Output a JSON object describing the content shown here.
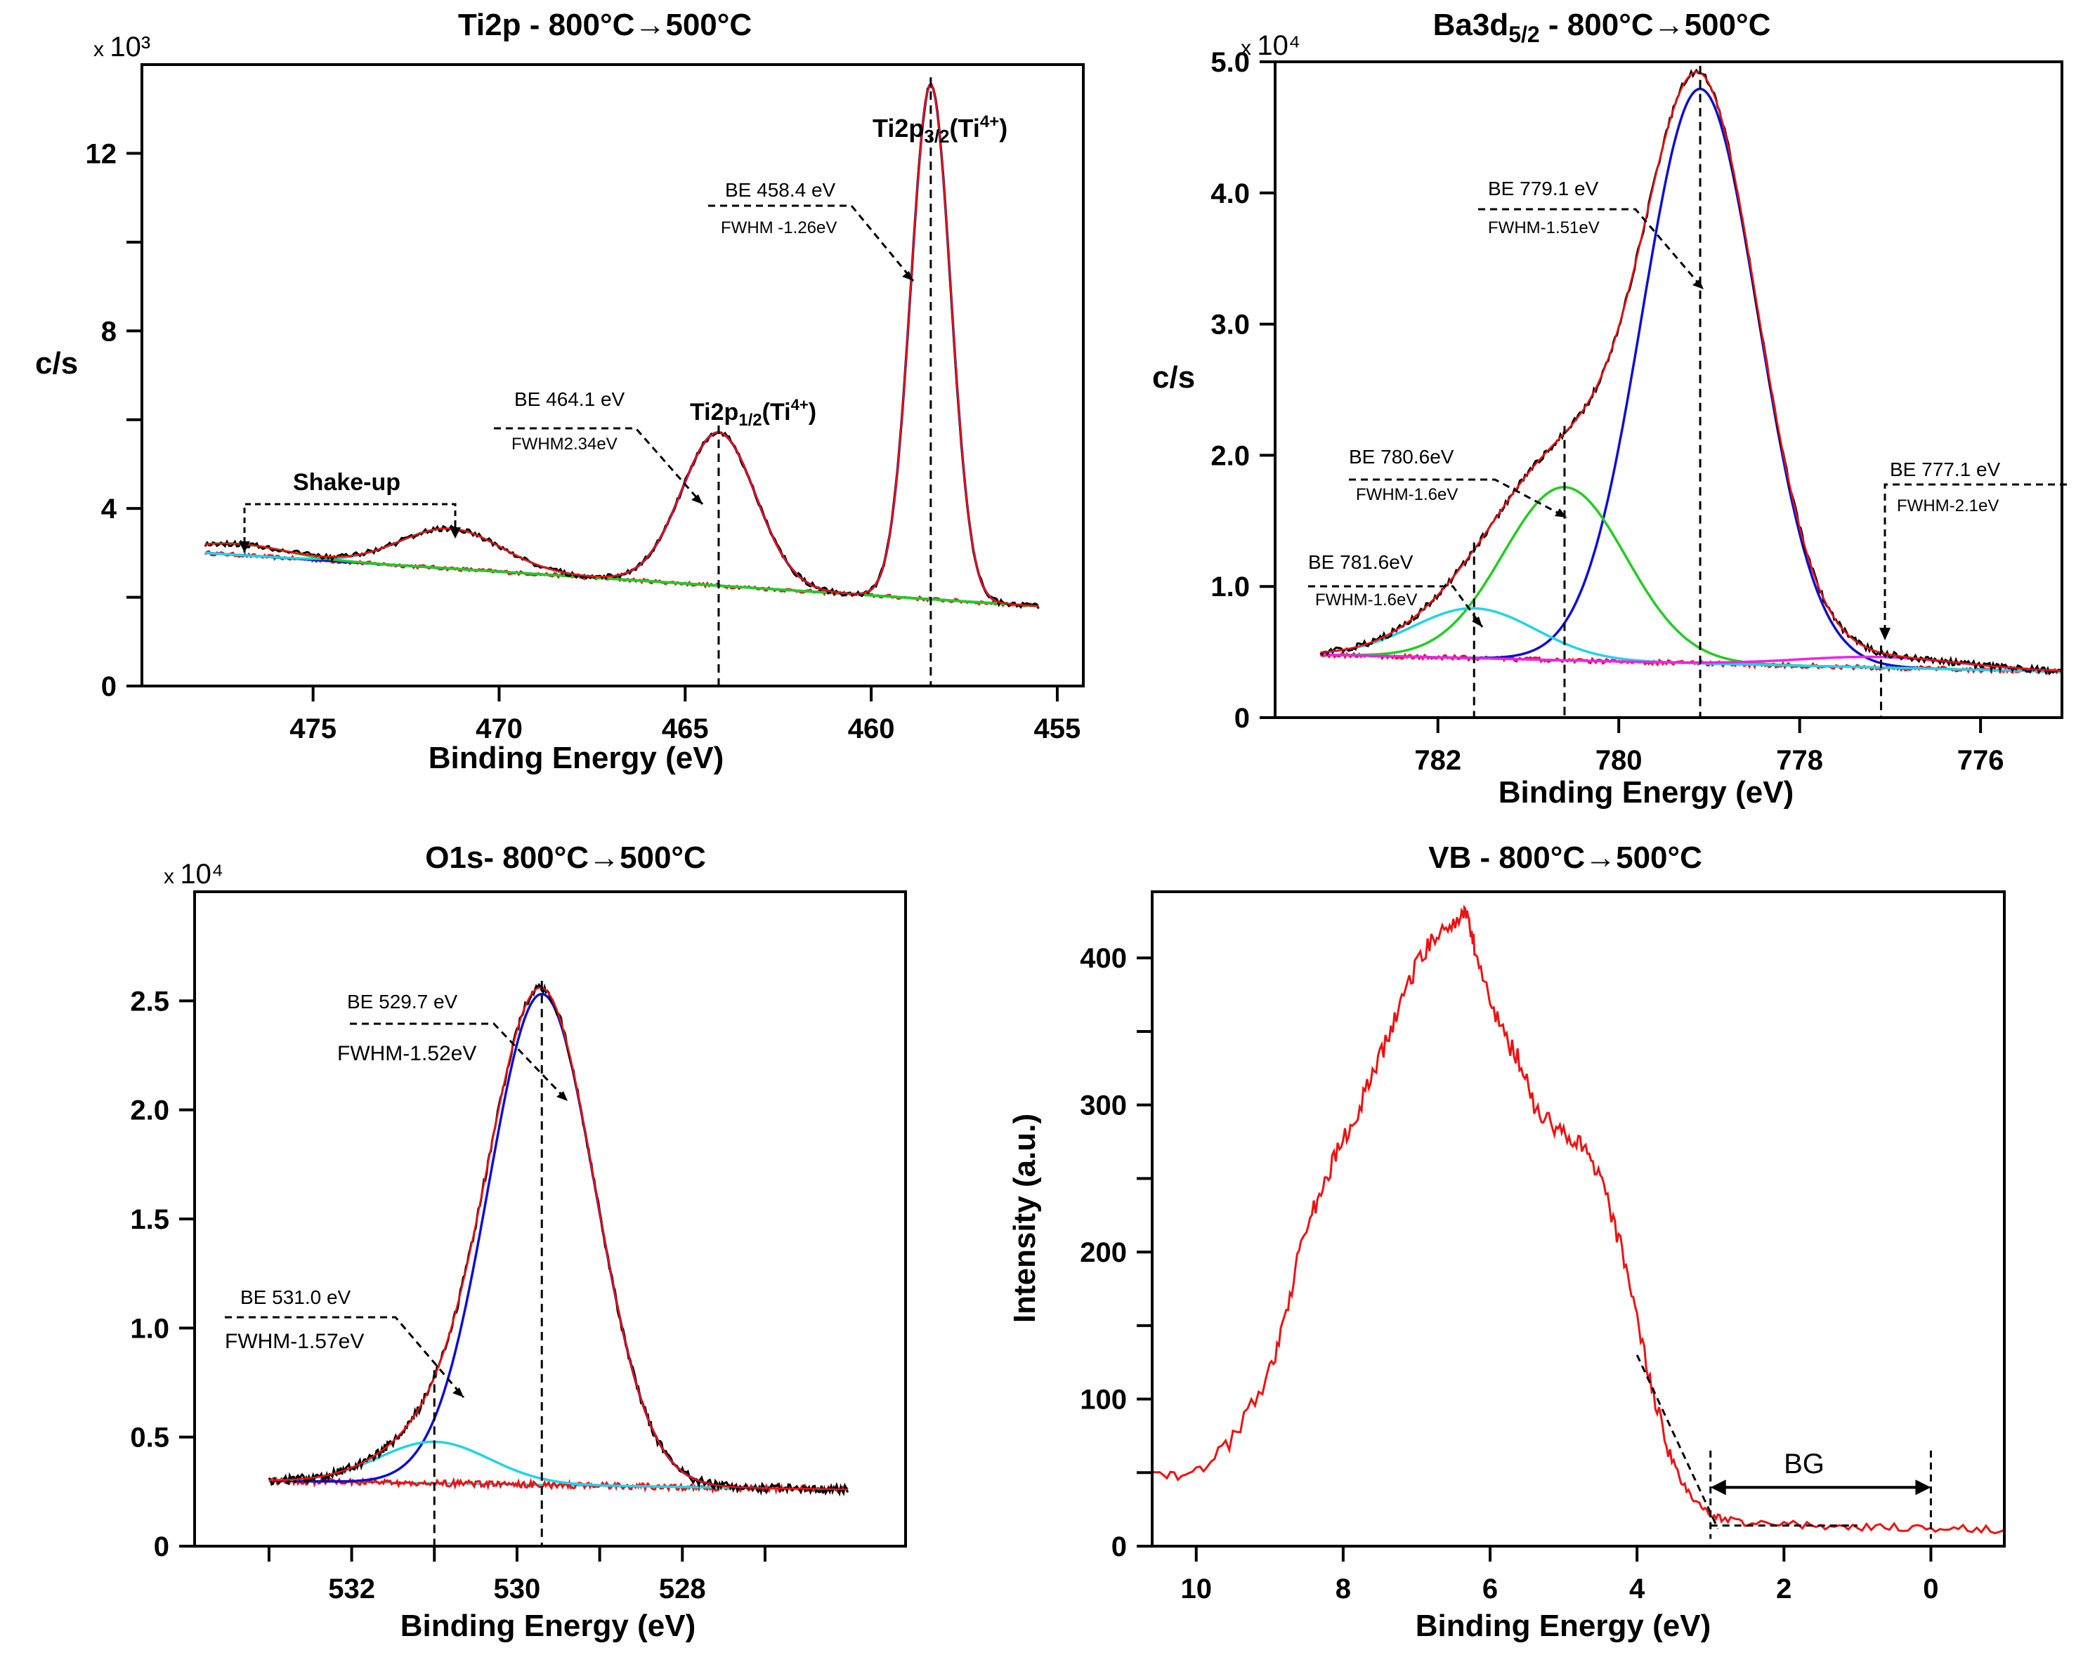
{
  "chart_data": [
    {
      "id": "ti2p",
      "type": "line",
      "title": "Ti2p - 800°C→500°C",
      "xlabel": "Binding Energy (eV)",
      "ylabel": "c/s",
      "multiplier": "10³",
      "xlim": [
        479.6,
        454.3
      ],
      "ylim": [
        0,
        14.0
      ],
      "xticks": [
        475,
        470,
        465,
        460,
        455
      ],
      "yticks": [
        0,
        4,
        8,
        12
      ],
      "x_range": [
        477.9,
        455.5
      ],
      "base": [
        3.0,
        1.8
      ],
      "peaks": [
        {
          "series": "Ti2p3/2 (blue)",
          "color": "#1010cc",
          "center": 458.4,
          "fwhm": 1.26,
          "height": 11.6
        },
        {
          "series": "Ti2p1/2 (blue)",
          "color": "#1010cc",
          "center": 464.1,
          "fwhm": 2.34,
          "height": 3.45
        },
        {
          "series": "Shake-up 1 (cyan)",
          "color": "#22d3e8",
          "center": 471.3,
          "fwhm": 3.2,
          "height": 0.9
        },
        {
          "series": "Shake-up 2 (green)",
          "color": "#22cc22",
          "center": 477.0,
          "fwhm": 3.0,
          "height": 0.25
        }
      ],
      "series_colors": {
        "raw": "#000000",
        "envelope": "#ee1111",
        "residual": "#ee1111",
        "background": "#22cc22"
      },
      "annotations": [
        {
          "be": "BE 458.4 eV",
          "fwhm": "FWHM -1.26eV"
        },
        {
          "be": "BE 464.1 eV",
          "fwhm": "FWHM2.34eV"
        }
      ],
      "labels": {
        "main": "Ti2p",
        "main_sub": "3/2",
        "main_tail": "(Ti",
        "main_sup": "4+",
        "main_close": ")",
        "second": "Ti2p",
        "second_sub": "1/2",
        "second_tail": "(Ti",
        "second_sup": "4+",
        "second_close": ")",
        "shake": "Shake-up"
      },
      "dashed_vlines": [
        464.1,
        458.4
      ]
    },
    {
      "id": "ba3d",
      "type": "line",
      "title_main": "Ba3d",
      "title_sub": "5/2",
      "title_tail": " - 800°C→500°C",
      "xlabel": "Binding Energy (eV)",
      "ylabel": "c/s",
      "multiplier": "10⁴",
      "xlim": [
        783.8,
        775.1
      ],
      "ylim": [
        0,
        5.0
      ],
      "xticks": [
        782,
        780,
        778,
        776
      ],
      "yticks": [
        0,
        1.0,
        2.0,
        3.0,
        4.0,
        5.0
      ],
      "ytick_labels": [
        "0",
        "1.0",
        "2.0",
        "3.0",
        "4.0",
        "5.0"
      ],
      "x_range": [
        783.3,
        775.1
      ],
      "base": [
        0.48,
        0.35
      ],
      "peaks": [
        {
          "series": "779.1 (blue)",
          "color": "#1010cc",
          "center": 779.1,
          "fwhm": 1.51,
          "height": 4.38
        },
        {
          "series": "780.6 (green)",
          "color": "#22cc22",
          "center": 780.6,
          "fwhm": 1.6,
          "height": 1.32
        },
        {
          "series": "781.6 (cyan)",
          "color": "#22d3e8",
          "center": 781.6,
          "fwhm": 1.6,
          "height": 0.38
        },
        {
          "series": "777.1 (magenta)",
          "color": "#ee22ee",
          "center": 777.1,
          "fwhm": 2.1,
          "height": 0.08
        }
      ],
      "series_colors": {
        "raw": "#000000",
        "envelope": "#ee1111",
        "residual": "#ee1111",
        "background": "#ee22ee"
      },
      "annotations": [
        {
          "be": "BE 779.1 eV",
          "fwhm": "FWHM-1.51eV"
        },
        {
          "be": "BE 780.6eV",
          "fwhm": "FWHM-1.6eV"
        },
        {
          "be": "BE 781.6eV",
          "fwhm": "FWHM-1.6eV"
        },
        {
          "be": "BE 777.1 eV",
          "fwhm": "FWHM-2.1eV"
        }
      ],
      "dashed_vlines": [
        779.1,
        780.6,
        781.6,
        777.1
      ]
    },
    {
      "id": "o1s",
      "type": "line",
      "title": "O1s- 800°C→500°C",
      "xlabel": "Binding Energy (eV)",
      "ylabel": "",
      "multiplier": "10⁴",
      "xlim": [
        533.9,
        525.3
      ],
      "ylim": [
        0,
        3.0
      ],
      "xticks": [
        532,
        530,
        528
      ],
      "xtick_minor": [
        533,
        531,
        529,
        527
      ],
      "yticks": [
        0,
        0.5,
        1.0,
        1.5,
        2.0,
        2.5
      ],
      "ytick_labels": [
        "0",
        "0.5",
        "1.0",
        "1.5",
        "2.0",
        "2.5"
      ],
      "x_range": [
        533.0,
        526.0
      ],
      "base": [
        0.3,
        0.26
      ],
      "peaks": [
        {
          "series": "529.7 (blue)",
          "color": "#1010cc",
          "center": 529.7,
          "fwhm": 1.52,
          "height": 2.25
        },
        {
          "series": "531.0 (cyan)",
          "color": "#22d3e8",
          "center": 531.0,
          "fwhm": 1.57,
          "height": 0.19
        }
      ],
      "series_colors": {
        "raw": "#000000",
        "envelope": "#ee1111",
        "residual": "#ee1111",
        "background": "#22d3e8"
      },
      "annotations": [
        {
          "be": "BE 529.7 eV",
          "fwhm": "FWHM-1.52eV"
        },
        {
          "be": "BE 531.0 eV",
          "fwhm": "FWHM-1.57eV"
        }
      ],
      "dashed_vlines": [
        529.7,
        531.0
      ]
    },
    {
      "id": "vb",
      "type": "line",
      "title": "VB - 800°C→500°C",
      "xlabel": "Binding Energy (eV)",
      "ylabel": "Intensity (a.u.)",
      "xlim": [
        10.6,
        -1.0
      ],
      "ylim": [
        0,
        445
      ],
      "xticks": [
        10,
        8,
        6,
        4,
        2,
        0
      ],
      "yticks": [
        0,
        100,
        200,
        300,
        400
      ],
      "x": [
        10.6,
        10.2,
        9.8,
        9.4,
        9.0,
        8.8,
        8.6,
        8.4,
        8.2,
        8.0,
        7.8,
        7.6,
        7.4,
        7.2,
        7.0,
        6.8,
        6.6,
        6.4,
        6.3,
        6.2,
        6.0,
        5.8,
        5.6,
        5.4,
        5.2,
        5.0,
        4.8,
        4.6,
        4.4,
        4.2,
        4.0,
        3.8,
        3.6,
        3.4,
        3.2,
        3.0,
        2.8,
        2.5,
        2.0,
        1.5,
        1.0,
        0.5,
        0.0,
        -0.5,
        -1.0
      ],
      "y": [
        50,
        47,
        55,
        80,
        120,
        150,
        200,
        230,
        255,
        275,
        295,
        320,
        345,
        370,
        395,
        410,
        420,
        430,
        428,
        405,
        370,
        345,
        330,
        300,
        290,
        280,
        275,
        260,
        235,
        200,
        155,
        105,
        70,
        45,
        30,
        22,
        18,
        16,
        15,
        14,
        13,
        13,
        12,
        12,
        11
      ],
      "series_colors": {
        "spectrum": "#ee1111"
      },
      "bandgap_label": "BG",
      "onset_ev": 3.0,
      "bandgap_end_ev": 0.0
    }
  ]
}
